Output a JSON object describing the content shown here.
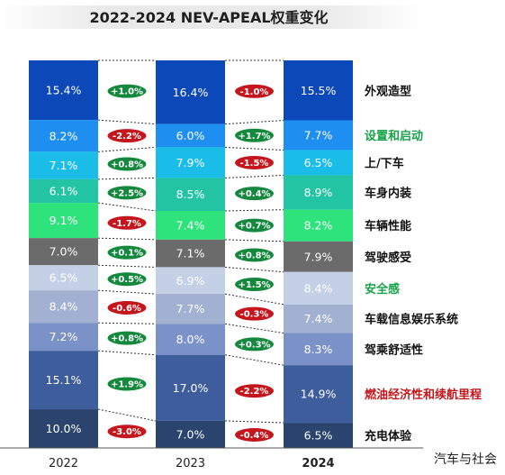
{
  "chart_data": {
    "type": "stacked-bar",
    "title": "2022-2024 NEV-APEAL权重变化",
    "categories": [
      "2022",
      "2023",
      "2024"
    ],
    "series": [
      {
        "name": "外观造型",
        "values": [
          15.4,
          16.4,
          15.5
        ],
        "color": "#0d48b8",
        "label_color": "#111111",
        "changes": [
          "+1.0%",
          "-1.0%"
        ]
      },
      {
        "name": "设置和启动",
        "values": [
          8.2,
          6.0,
          7.7
        ],
        "color": "#1e8ff0",
        "label_color": "#17a24a",
        "changes": [
          "-2.2%",
          "+1.7%"
        ]
      },
      {
        "name": "上/下车",
        "values": [
          7.1,
          7.9,
          6.5
        ],
        "color": "#19bde8",
        "label_color": "#111111",
        "changes": [
          "+0.8%",
          "-1.5%"
        ]
      },
      {
        "name": "车身内装",
        "values": [
          6.1,
          8.5,
          8.9
        ],
        "color": "#22c4a4",
        "label_color": "#111111",
        "changes": [
          "+2.5%",
          "+0.4%"
        ]
      },
      {
        "name": "车辆性能",
        "values": [
          9.1,
          7.4,
          8.2
        ],
        "color": "#2ee37c",
        "label_color": "#111111",
        "changes": [
          "-1.7%",
          "+0.7%"
        ]
      },
      {
        "name": "驾驶感受",
        "values": [
          7.0,
          7.1,
          7.9
        ],
        "color": "#6b6b6b",
        "label_color": "#111111",
        "changes": [
          "+0.1%",
          "+0.8%"
        ]
      },
      {
        "name": "安全感",
        "values": [
          6.5,
          6.9,
          8.4
        ],
        "color": "#c4d0e6",
        "label_color": "#17a24a",
        "changes": [
          "+0.5%",
          "+1.5%"
        ]
      },
      {
        "name": "车载信息娱乐系统",
        "values": [
          8.4,
          7.7,
          7.4
        ],
        "color": "#a2b0d2",
        "label_color": "#111111",
        "changes": [
          "-0.6%",
          "-0.3%"
        ]
      },
      {
        "name": "驾乘舒适性",
        "values": [
          7.2,
          8.0,
          8.3
        ],
        "color": "#7a92c8",
        "label_color": "#111111",
        "changes": [
          "+0.8%",
          "+0.3%"
        ]
      },
      {
        "name": "燃油经济性和续航里程",
        "values": [
          15.1,
          17.0,
          14.9
        ],
        "color": "#3d5d9c",
        "label_color": "#c0161c",
        "changes": [
          "+1.9%",
          "-2.2%"
        ]
      },
      {
        "name": "充电体验",
        "values": [
          10.0,
          7.0,
          6.5
        ],
        "color": "#2a446e",
        "label_color": "#111111",
        "changes": [
          "-3.0%",
          "-0.4%"
        ]
      }
    ],
    "unit": "%",
    "ylim": [
      0,
      100
    ],
    "grid": false,
    "legend": "right",
    "year_bold": [
      false,
      false,
      true
    ]
  },
  "colors": {
    "pill_positive": "#14893d",
    "pill_negative": "#c4161c"
  },
  "watermark": "汽车与社会"
}
